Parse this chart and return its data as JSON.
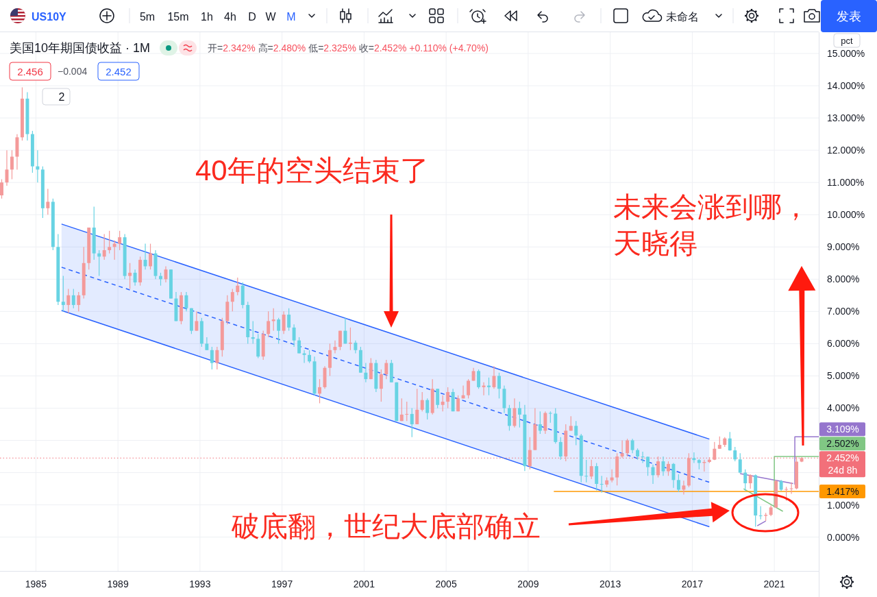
{
  "chart_data": {
    "type": "candlestick",
    "title": "美国10年期国债收益 · 1M",
    "subtitle": "开=2.342% 高=2.480% 低=2.325% 收=2.452% +0.110% (+4.70%)",
    "x": [
      "1983-05",
      "1983-08",
      "1983-11",
      "1984-02",
      "1984-05",
      "1984-08",
      "1984-11",
      "1985-02",
      "1985-05",
      "1985-08",
      "1985-11",
      "1986-02",
      "1986-05",
      "1986-08",
      "1986-11",
      "1987-02",
      "1987-05",
      "1987-08",
      "1987-11",
      "1988-02",
      "1988-05",
      "1988-08",
      "1988-11",
      "1989-02",
      "1989-05",
      "1989-08",
      "1989-11",
      "1990-02",
      "1990-05",
      "1990-08",
      "1990-11",
      "1991-02",
      "1991-05",
      "1991-08",
      "1991-11",
      "1992-02",
      "1992-05",
      "1992-08",
      "1992-11",
      "1993-02",
      "1993-05",
      "1993-08",
      "1993-11",
      "1994-02",
      "1994-05",
      "1994-08",
      "1994-11",
      "1995-02",
      "1995-05",
      "1995-08",
      "1995-11",
      "1996-02",
      "1996-05",
      "1996-08",
      "1996-11",
      "1997-02",
      "1997-05",
      "1997-08",
      "1997-11",
      "1998-02",
      "1998-05",
      "1998-08",
      "1998-11",
      "1999-02",
      "1999-05",
      "1999-08",
      "1999-11",
      "2000-02",
      "2000-05",
      "2000-08",
      "2000-11",
      "2001-02",
      "2001-05",
      "2001-08",
      "2001-11",
      "2002-02",
      "2002-05",
      "2002-08",
      "2002-11",
      "2003-02",
      "2003-05",
      "2003-08",
      "2003-11",
      "2004-02",
      "2004-05",
      "2004-08",
      "2004-11",
      "2005-02",
      "2005-05",
      "2005-08",
      "2005-11",
      "2006-02",
      "2006-05",
      "2006-08",
      "2006-11",
      "2007-02",
      "2007-05",
      "2007-08",
      "2007-11",
      "2008-02",
      "2008-05",
      "2008-08",
      "2008-11",
      "2009-02",
      "2009-05",
      "2009-08",
      "2009-11",
      "2010-02",
      "2010-05",
      "2010-08",
      "2010-11",
      "2011-02",
      "2011-05",
      "2011-08",
      "2011-11",
      "2012-02",
      "2012-05",
      "2012-08",
      "2012-11",
      "2013-02",
      "2013-05",
      "2013-08",
      "2013-11",
      "2014-02",
      "2014-05",
      "2014-08",
      "2014-11",
      "2015-02",
      "2015-05",
      "2015-08",
      "2015-11",
      "2016-02",
      "2016-05",
      "2016-08",
      "2016-11",
      "2017-02",
      "2017-05",
      "2017-08",
      "2017-11",
      "2018-02",
      "2018-05",
      "2018-08",
      "2018-11",
      "2019-02",
      "2019-05",
      "2019-08",
      "2019-11",
      "2020-02",
      "2020-05",
      "2020-08",
      "2020-11",
      "2021-02",
      "2021-05",
      "2021-08",
      "2021-11",
      "2022-02",
      "2022-05"
    ],
    "ohlc": [
      [
        10.6,
        11.1,
        10.5,
        11.0
      ],
      [
        11.0,
        12.0,
        10.9,
        11.4
      ],
      [
        11.4,
        12.0,
        11.1,
        11.8
      ],
      [
        11.8,
        12.5,
        11.4,
        12.4
      ],
      [
        12.4,
        13.95,
        12.3,
        13.6
      ],
      [
        13.6,
        13.8,
        12.3,
        12.5
      ],
      [
        12.5,
        12.6,
        11.3,
        11.5
      ],
      [
        11.5,
        12.0,
        11.0,
        11.4
      ],
      [
        11.4,
        11.5,
        9.9,
        10.2
      ],
      [
        10.2,
        10.8,
        10.0,
        10.4
      ],
      [
        10.4,
        10.5,
        8.9,
        9.0
      ],
      [
        9.0,
        9.4,
        7.2,
        7.3
      ],
      [
        7.3,
        8.1,
        7.0,
        7.2
      ],
      [
        7.2,
        7.7,
        6.95,
        7.5
      ],
      [
        7.5,
        7.7,
        7.1,
        7.2
      ],
      [
        7.2,
        7.6,
        7.0,
        7.5
      ],
      [
        7.5,
        9.0,
        7.4,
        8.5
      ],
      [
        8.5,
        9.6,
        8.3,
        9.6
      ],
      [
        9.6,
        10.25,
        8.6,
        8.8
      ],
      [
        8.8,
        8.9,
        8.1,
        8.7
      ],
      [
        8.7,
        9.4,
        8.6,
        8.9
      ],
      [
        8.9,
        9.5,
        8.8,
        9.0
      ],
      [
        9.0,
        9.2,
        8.6,
        9.1
      ],
      [
        9.1,
        9.5,
        8.9,
        9.3
      ],
      [
        9.3,
        9.4,
        8.0,
        8.1
      ],
      [
        8.1,
        8.5,
        7.7,
        8.2
      ],
      [
        8.2,
        8.3,
        7.8,
        7.9
      ],
      [
        7.9,
        8.7,
        7.8,
        8.6
      ],
      [
        8.6,
        9.1,
        8.3,
        8.4
      ],
      [
        8.4,
        9.1,
        8.3,
        8.8
      ],
      [
        8.8,
        8.9,
        8.0,
        8.1
      ],
      [
        8.1,
        8.2,
        7.8,
        8.0
      ],
      [
        8.0,
        8.4,
        7.9,
        8.3
      ],
      [
        8.3,
        8.3,
        7.4,
        7.4
      ],
      [
        7.4,
        7.6,
        6.7,
        6.7
      ],
      [
        6.7,
        7.6,
        6.6,
        7.5
      ],
      [
        7.5,
        7.6,
        7.0,
        7.1
      ],
      [
        7.1,
        7.1,
        6.3,
        6.4
      ],
      [
        6.4,
        7.0,
        6.4,
        6.7
      ],
      [
        6.7,
        6.8,
        5.9,
        6.0
      ],
      [
        6.0,
        6.2,
        5.8,
        5.8
      ],
      [
        5.8,
        5.9,
        5.2,
        5.4
      ],
      [
        5.4,
        5.9,
        5.2,
        5.8
      ],
      [
        5.8,
        6.8,
        5.6,
        6.7
      ],
      [
        6.7,
        7.5,
        6.6,
        7.3
      ],
      [
        7.3,
        7.7,
        7.0,
        7.6
      ],
      [
        7.6,
        8.05,
        7.5,
        7.8
      ],
      [
        7.8,
        7.9,
        7.1,
        7.2
      ],
      [
        7.2,
        7.3,
        6.0,
        6.2
      ],
      [
        6.2,
        6.7,
        6.0,
        6.15
      ],
      [
        6.15,
        6.3,
        5.55,
        5.6
      ],
      [
        5.6,
        6.4,
        5.5,
        6.3
      ],
      [
        6.3,
        7.0,
        6.2,
        6.7
      ],
      [
        6.7,
        7.1,
        6.4,
        6.75
      ],
      [
        6.75,
        6.8,
        6.0,
        6.4
      ],
      [
        6.4,
        7.0,
        6.3,
        6.9
      ],
      [
        6.9,
        7.1,
        6.4,
        6.5
      ],
      [
        6.5,
        6.6,
        5.9,
        6.1
      ],
      [
        6.1,
        6.2,
        5.7,
        5.7
      ],
      [
        5.7,
        5.8,
        5.4,
        5.65
      ],
      [
        5.65,
        5.8,
        5.4,
        5.45
      ],
      [
        5.45,
        5.6,
        4.4,
        4.45
      ],
      [
        4.45,
        4.9,
        4.15,
        4.65
      ],
      [
        4.65,
        5.3,
        4.6,
        5.25
      ],
      [
        5.25,
        6.0,
        5.0,
        5.8
      ],
      [
        5.8,
        6.1,
        5.7,
        5.9
      ],
      [
        5.9,
        6.4,
        5.8,
        6.4
      ],
      [
        6.4,
        6.8,
        6.0,
        6.0
      ],
      [
        6.0,
        6.5,
        5.8,
        6.03
      ],
      [
        6.03,
        6.1,
        5.7,
        5.8
      ],
      [
        5.8,
        5.9,
        5.1,
        5.1
      ],
      [
        5.1,
        5.4,
        4.8,
        4.9
      ],
      [
        4.9,
        5.55,
        4.9,
        5.4
      ],
      [
        5.4,
        5.5,
        4.5,
        4.6
      ],
      [
        4.6,
        5.2,
        4.2,
        5.05
      ],
      [
        5.05,
        5.5,
        4.9,
        5.4
      ],
      [
        5.4,
        5.5,
        4.8,
        4.8
      ],
      [
        4.8,
        4.8,
        3.6,
        3.6
      ],
      [
        3.6,
        4.3,
        3.6,
        3.8
      ],
      [
        3.8,
        4.2,
        3.6,
        3.82
      ],
      [
        3.82,
        4.0,
        3.1,
        3.5
      ],
      [
        3.5,
        4.6,
        3.5,
        3.95
      ],
      [
        3.95,
        4.5,
        3.9,
        4.25
      ],
      [
        4.25,
        4.3,
        3.65,
        3.85
      ],
      [
        3.85,
        4.9,
        3.8,
        4.6
      ],
      [
        4.6,
        4.6,
        4.0,
        4.1
      ],
      [
        4.1,
        4.4,
        3.9,
        4.2
      ],
      [
        4.2,
        4.65,
        4.0,
        4.5
      ],
      [
        4.5,
        4.6,
        3.9,
        3.9
      ],
      [
        3.9,
        4.4,
        3.9,
        4.3
      ],
      [
        4.3,
        4.7,
        4.3,
        4.4
      ],
      [
        4.4,
        4.9,
        4.3,
        4.85
      ],
      [
        4.85,
        5.25,
        4.85,
        5.15
      ],
      [
        5.15,
        5.2,
        4.6,
        4.65
      ],
      [
        4.65,
        4.8,
        4.4,
        4.7
      ],
      [
        4.7,
        4.95,
        4.4,
        4.65
      ],
      [
        4.65,
        5.3,
        4.6,
        5.0
      ],
      [
        5.0,
        5.1,
        4.3,
        4.6
      ],
      [
        4.6,
        4.7,
        3.85,
        4.0
      ],
      [
        4.0,
        4.1,
        3.3,
        3.45
      ],
      [
        3.45,
        4.3,
        3.4,
        4.0
      ],
      [
        4.0,
        4.2,
        3.4,
        3.8
      ],
      [
        3.8,
        4.1,
        2.05,
        2.2
      ],
      [
        2.2,
        3.1,
        2.1,
        2.7
      ],
      [
        2.7,
        4.0,
        2.7,
        3.5
      ],
      [
        3.5,
        3.9,
        3.2,
        3.3
      ],
      [
        3.3,
        3.9,
        3.2,
        3.85
      ],
      [
        3.85,
        3.9,
        3.55,
        3.83
      ],
      [
        3.83,
        4.0,
        2.9,
        2.95
      ],
      [
        2.95,
        3.1,
        2.4,
        2.5
      ],
      [
        2.5,
        3.5,
        2.35,
        3.3
      ],
      [
        3.3,
        3.75,
        3.3,
        3.45
      ],
      [
        3.45,
        3.6,
        2.85,
        3.15
      ],
      [
        3.15,
        3.2,
        1.7,
        1.9
      ],
      [
        1.9,
        2.4,
        1.7,
        1.88
      ],
      [
        1.88,
        2.4,
        1.8,
        2.2
      ],
      [
        2.2,
        2.3,
        1.45,
        1.65
      ],
      [
        1.65,
        1.9,
        1.38,
        1.63
      ],
      [
        1.63,
        1.85,
        1.55,
        1.76
      ],
      [
        1.76,
        2.1,
        1.7,
        1.85
      ],
      [
        1.85,
        2.6,
        1.6,
        2.5
      ],
      [
        2.5,
        3.0,
        2.45,
        2.6
      ],
      [
        2.6,
        3.05,
        2.5,
        3.0
      ],
      [
        3.0,
        3.05,
        2.6,
        2.7
      ],
      [
        2.7,
        2.75,
        2.4,
        2.5
      ],
      [
        2.5,
        2.65,
        2.3,
        2.49
      ],
      [
        2.49,
        2.5,
        1.9,
        2.17
      ],
      [
        2.17,
        2.25,
        1.65,
        1.92
      ],
      [
        1.92,
        2.5,
        1.85,
        2.35
      ],
      [
        2.35,
        2.5,
        1.9,
        2.04
      ],
      [
        2.04,
        2.35,
        1.9,
        2.27
      ],
      [
        2.27,
        2.3,
        1.53,
        1.77
      ],
      [
        1.77,
        1.95,
        1.4,
        1.47
      ],
      [
        1.47,
        1.75,
        1.32,
        1.6
      ],
      [
        1.6,
        2.6,
        1.55,
        2.45
      ],
      [
        2.45,
        2.63,
        2.3,
        2.39
      ],
      [
        2.39,
        2.42,
        2.1,
        2.3
      ],
      [
        2.3,
        2.4,
        2.03,
        2.33
      ],
      [
        2.33,
        2.48,
        2.3,
        2.4
      ],
      [
        2.4,
        2.95,
        2.39,
        2.74
      ],
      [
        2.74,
        3.12,
        2.74,
        2.86
      ],
      [
        2.86,
        3.1,
        2.8,
        3.06
      ],
      [
        3.06,
        3.26,
        2.68,
        2.69
      ],
      [
        2.69,
        2.8,
        2.35,
        2.41
      ],
      [
        2.41,
        2.6,
        1.98,
        2.0
      ],
      [
        2.0,
        2.1,
        1.43,
        1.67
      ],
      [
        1.67,
        1.95,
        1.5,
        1.92
      ],
      [
        1.92,
        1.94,
        0.32,
        0.67
      ],
      [
        0.67,
        0.96,
        0.55,
        0.66
      ],
      [
        0.66,
        0.75,
        0.5,
        0.69
      ],
      [
        0.69,
        0.98,
        0.65,
        0.92
      ],
      [
        0.92,
        1.77,
        0.9,
        1.74
      ],
      [
        1.74,
        1.77,
        1.43,
        1.47
      ],
      [
        1.47,
        1.56,
        1.13,
        1.49
      ],
      [
        1.49,
        1.7,
        1.34,
        1.51
      ],
      [
        1.51,
        2.5,
        1.48,
        2.34
      ],
      [
        2.342,
        2.48,
        2.325,
        2.452
      ]
    ],
    "colors": [
      "#f49a9a",
      "#f49a9a",
      "#f49a9a",
      "#f49a9a",
      "#f49a9a",
      "#68d3e3",
      "#68d3e3",
      "#68d3e3",
      "#68d3e3",
      "#f49a9a",
      "#68d3e3",
      "#68d3e3",
      "#68d3e3",
      "#f49a9a",
      "#68d3e3",
      "#f49a9a",
      "#f49a9a",
      "#f49a9a",
      "#68d3e3",
      "#68d3e3",
      "#f49a9a",
      "#f49a9a",
      "#f49a9a",
      "#f49a9a",
      "#68d3e3",
      "#f49a9a",
      "#68d3e3",
      "#f49a9a",
      "#68d3e3",
      "#f49a9a",
      "#68d3e3",
      "#68d3e3",
      "#f49a9a",
      "#68d3e3",
      "#68d3e3",
      "#f49a9a",
      "#68d3e3",
      "#68d3e3",
      "#f49a9a",
      "#68d3e3",
      "#68d3e3",
      "#68d3e3",
      "#f49a9a",
      "#f49a9a",
      "#f49a9a",
      "#f49a9a",
      "#f49a9a",
      "#68d3e3",
      "#68d3e3",
      "#68d3e3",
      "#68d3e3",
      "#f49a9a",
      "#f49a9a",
      "#f49a9a",
      "#68d3e3",
      "#f49a9a",
      "#68d3e3",
      "#68d3e3",
      "#68d3e3",
      "#68d3e3",
      "#68d3e3",
      "#68d3e3",
      "#f49a9a",
      "#f49a9a",
      "#f49a9a",
      "#f49a9a",
      "#f49a9a",
      "#68d3e3",
      "#f49a9a",
      "#68d3e3",
      "#68d3e3",
      "#68d3e3",
      "#f49a9a",
      "#68d3e3",
      "#f49a9a",
      "#f49a9a",
      "#68d3e3",
      "#68d3e3",
      "#f49a9a",
      "#f49a9a",
      "#68d3e3",
      "#f49a9a",
      "#f49a9a",
      "#68d3e3",
      "#f49a9a",
      "#68d3e3",
      "#f49a9a",
      "#f49a9a",
      "#68d3e3",
      "#f49a9a",
      "#f49a9a",
      "#f49a9a",
      "#f49a9a",
      "#68d3e3",
      "#f49a9a",
      "#68d3e3",
      "#f49a9a",
      "#68d3e3",
      "#68d3e3",
      "#68d3e3",
      "#f49a9a",
      "#68d3e3",
      "#68d3e3",
      "#f49a9a",
      "#f49a9a",
      "#68d3e3",
      "#f49a9a",
      "#68d3e3",
      "#68d3e3",
      "#68d3e3",
      "#f49a9a",
      "#f49a9a",
      "#68d3e3",
      "#68d3e3",
      "#68d3e3",
      "#f49a9a",
      "#68d3e3",
      "#68d3e3",
      "#f49a9a",
      "#f49a9a",
      "#f49a9a",
      "#f49a9a",
      "#f49a9a",
      "#68d3e3",
      "#68d3e3",
      "#68d3e3",
      "#68d3e3",
      "#68d3e3",
      "#f49a9a",
      "#68d3e3",
      "#f49a9a",
      "#68d3e3",
      "#68d3e3",
      "#f49a9a",
      "#f49a9a",
      "#68d3e3",
      "#68d3e3",
      "#f49a9a",
      "#f49a9a",
      "#f49a9a",
      "#f49a9a",
      "#f49a9a",
      "#68d3e3",
      "#68d3e3",
      "#68d3e3",
      "#68d3e3",
      "#f49a9a",
      "#68d3e3",
      "#68d3e3",
      "#f49a9a",
      "#f49a9a",
      "#f49a9a",
      "#68d3e3",
      "#f49a9a",
      "#f49a9a",
      "#f49a9a",
      "#f49a9a"
    ],
    "xlim": [
      "1983-04",
      "2023-03"
    ],
    "xticks": [
      "1985",
      "1989",
      "1993",
      "1997",
      "2001",
      "2005",
      "2009",
      "2013",
      "2017",
      "2021"
    ],
    "ylim": [
      -1.05,
      15.66
    ],
    "yticks": [
      {
        "value": 0,
        "label": "0.000%"
      },
      {
        "value": 1,
        "label": "1.000%"
      },
      {
        "value": 2,
        "label": null
      },
      {
        "value": 3,
        "label": null
      },
      {
        "value": 4,
        "label": "4.000%"
      },
      {
        "value": 5,
        "label": "5.000%"
      },
      {
        "value": 6,
        "label": "6.000%"
      },
      {
        "value": 7,
        "label": "7.000%"
      },
      {
        "value": 8,
        "label": "8.000%"
      },
      {
        "value": 9,
        "label": "9.000%"
      },
      {
        "value": 10,
        "label": "10.000%"
      },
      {
        "value": 11,
        "label": "11.000%"
      },
      {
        "value": 12,
        "label": "12.000%"
      },
      {
        "value": 13,
        "label": "13.000%"
      },
      {
        "value": 14,
        "label": "14.000%"
      },
      {
        "value": 15,
        "label": "15.000%"
      }
    ],
    "grid": true,
    "series": [
      {
        "type": "line",
        "color": "#2962ff",
        "x": [
          "1986-04",
          "2017-11"
        ],
        "values": [
          8.37,
          1.7
        ],
        "lower": [
          7.03,
          0.32
        ],
        "upper": [
          9.71,
          3.04
        ],
        "line_style": "dashed"
      },
      {
        "type": "line",
        "color": "#2962ff",
        "x": [
          "1986-04",
          "2017-11"
        ],
        "values": [
          9.71,
          3.04
        ]
      },
      {
        "type": "line",
        "color": "#2962ff",
        "x": [
          "1986-04",
          "2017-11"
        ],
        "values": [
          7.03,
          0.32
        ]
      },
      {
        "type": "line",
        "color": "#9575cd",
        "x": [
          "2019-05",
          "2021-12"
        ],
        "values": [
          1.97,
          1.66
        ]
      },
      {
        "type": "line",
        "color": "#81c784",
        "x": [
          "2019-07",
          "2021-06"
        ],
        "values": [
          1.5,
          0.8
        ]
      },
      {
        "type": "line",
        "color": "#9575cd",
        "x": [
          "2020-03",
          "2020-08"
        ],
        "values": [
          0.35,
          0.5
        ]
      },
      {
        "type": "line",
        "color": "#81c784",
        "x": [
          "2021-01",
          "2021-01",
          "2023-03"
        ],
        "values": [
          0.92,
          2.502,
          2.502
        ],
        "value_labels": [
          null,
          null,
          "2.502%"
        ]
      },
      {
        "type": "line",
        "color": "#9575cd",
        "x": [
          "2022-01",
          "2022-01",
          "2023-03"
        ],
        "values": [
          1.63,
          3.109,
          3.109
        ],
        "value_labels": [
          null,
          null,
          "3.109%"
        ]
      },
      {
        "type": "line",
        "color": "#ff9800",
        "x": [
          "2010-04",
          "2023-03"
        ],
        "values": [
          1.417,
          1.417
        ],
        "value_labels": [
          null,
          "1.417%"
        ]
      }
    ],
    "ref_lines": [
      {
        "axis": "y",
        "value": 2.452,
        "label": "2.452%\n24d 8h",
        "color": "#f2707a",
        "line_style": "dotted"
      }
    ],
    "annotations": [
      "US10Y",
      "5m",
      "15m",
      "1h",
      "4h",
      "D",
      "W",
      "M",
      "未命名",
      "发表",
      "2.456",
      "−0.004",
      "2.452",
      "2",
      "pct",
      "40年的空头结束了",
      "未来会涨到哪，",
      "天晓得",
      "破底翻，世纪大底部确立"
    ]
  }
}
